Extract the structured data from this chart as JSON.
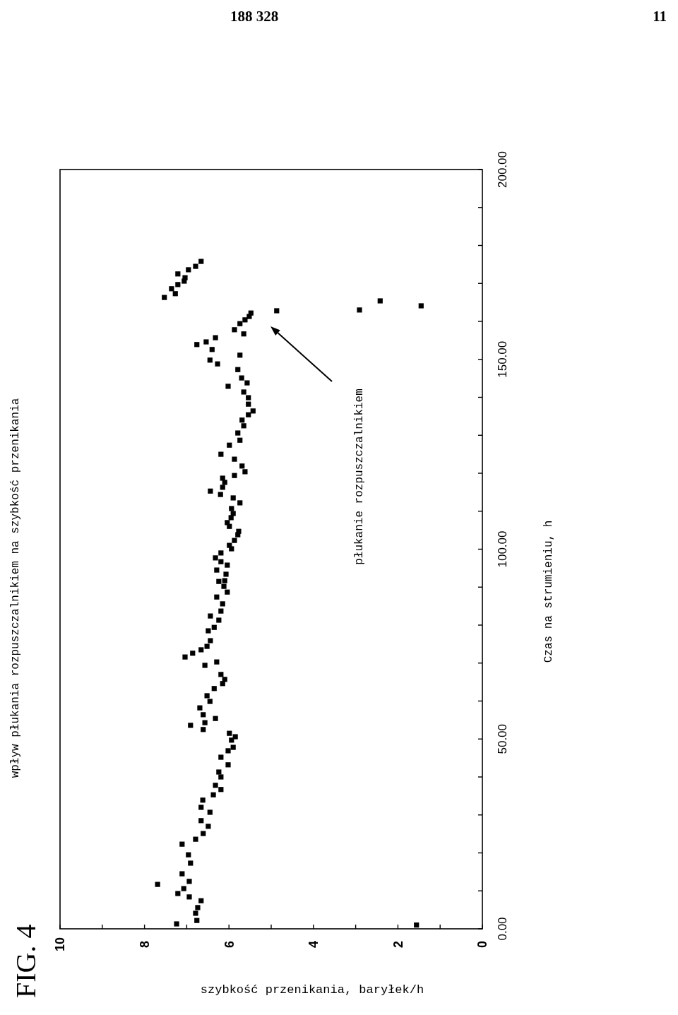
{
  "chart_data": {
    "type": "scatter",
    "title": "wpływ płukania rozpuszczalnikiem na szybkość przenikania",
    "xlabel": "szybkość przenikania, baryłek/h",
    "ylabel": "Czas na strumieniu, h",
    "annotations": [
      "188 328",
      "11",
      "FIG. 4",
      "płukanie rozpuszczalnikiem"
    ],
    "marker": "square",
    "xlim": [
      10,
      0
    ],
    "xticks": [
      10,
      {
        "value": 9,
        "label": null
      },
      8,
      {
        "value": 7,
        "label": null
      },
      6,
      {
        "value": 5,
        "label": null
      },
      4,
      {
        "value": 3,
        "label": null
      },
      2,
      {
        "value": 1,
        "label": null
      },
      0
    ],
    "ylim": [
      0,
      200
    ],
    "yticks": [
      {
        "value": 0,
        "label": "0.00"
      },
      {
        "value": 10,
        "label": null
      },
      {
        "value": 20,
        "label": null
      },
      {
        "value": 30,
        "label": null
      },
      {
        "value": 40,
        "label": null
      },
      {
        "value": 50,
        "label": "50.00"
      },
      {
        "value": 60,
        "label": null
      },
      {
        "value": 70,
        "label": null
      },
      {
        "value": 80,
        "label": null
      },
      {
        "value": 90,
        "label": null
      },
      {
        "value": 100,
        "label": "100.00"
      },
      {
        "value": 110,
        "label": null
      },
      {
        "value": 120,
        "label": null
      },
      {
        "value": 130,
        "label": null
      },
      {
        "value": 140,
        "label": null
      },
      {
        "value": 150,
        "label": "150.00"
      },
      {
        "value": 160,
        "label": null
      },
      {
        "value": 170,
        "label": null
      },
      {
        "value": 180,
        "label": null
      },
      {
        "value": 190,
        "label": null
      },
      {
        "value": 200,
        "label": "200.00"
      }
    ],
    "series": [
      {
        "color": "#000000",
        "values": [
          1.3,
          1,
          2.2,
          4.1,
          5.6,
          7.4,
          8.4,
          9.3,
          10.6,
          11.7,
          12.5,
          14.5,
          17.3,
          19.5,
          22.3,
          23.6,
          25.1,
          27,
          28.5,
          30.7,
          32,
          33.9,
          35.3,
          36.7,
          37.8,
          40,
          41.3,
          43.2,
          45.2,
          46.9,
          47.8,
          49.7,
          50.6,
          51.5,
          52.5,
          53.6,
          54.3,
          55.4,
          56.4,
          58.2,
          59.9,
          61.4,
          63.3,
          64.6,
          65.7,
          67,
          69.4,
          70.3,
          71.6,
          72.6,
          73.5,
          74.4,
          75.9,
          78.5,
          79.4,
          81.3,
          82.4,
          83.7,
          85.6,
          87.4,
          88.7,
          90.2,
          91.5,
          91.7,
          93.4,
          94.5,
          95.8,
          96.7,
          97.7,
          99,
          100.1,
          101,
          102.3,
          103.8,
          104.7,
          106,
          107,
          108.3,
          109.4,
          110.7,
          112.2,
          113.5,
          114.4,
          115.3,
          116.3,
          117.6,
          118.7,
          119.4,
          120.4,
          121.9,
          123.7,
          125,
          127.4,
          128.7,
          130.6,
          132.5,
          134,
          135.4,
          136.4,
          138.2,
          139.9,
          141.4,
          142.9,
          143.8,
          145.1,
          147.3,
          148.8,
          149.8,
          151.1,
          152.6,
          153.9,
          154.6,
          155.7,
          156.7,
          157.8,
          159.4,
          160.4,
          161.3,
          162.2,
          162.8,
          163,
          164.1,
          165.4,
          166.3,
          167.3,
          168.6,
          169.7,
          170.6,
          171.5,
          172.5,
          173.6,
          174.5,
          175.8
        ],
        "x": [
          7.24,
          1.56,
          6.76,
          6.79,
          6.74,
          6.66,
          6.94,
          7.21,
          7.07,
          7.69,
          6.94,
          7.11,
          6.91,
          6.96,
          7.11,
          6.79,
          6.61,
          6.49,
          6.66,
          6.45,
          6.66,
          6.62,
          6.37,
          6.19,
          6.32,
          6.19,
          6.24,
          6.02,
          6.19,
          6.02,
          5.9,
          5.94,
          5.85,
          5.99,
          6.61,
          6.91,
          6.57,
          6.32,
          6.61,
          6.69,
          6.45,
          6.52,
          6.35,
          6.15,
          6.1,
          6.19,
          6.57,
          6.29,
          7.04,
          6.86,
          6.66,
          6.52,
          6.44,
          6.49,
          6.35,
          6.24,
          6.44,
          6.19,
          6.15,
          6.29,
          6.04,
          6.12,
          6.24,
          6.1,
          6.07,
          6.29,
          6.04,
          6.19,
          6.32,
          6.19,
          5.94,
          5.99,
          5.87,
          5.79,
          5.77,
          5.99,
          6.04,
          5.95,
          5.9,
          5.94,
          5.74,
          5.9,
          6.2,
          6.44,
          6.15,
          6.1,
          6.15,
          5.87,
          5.62,
          5.69,
          5.87,
          6.19,
          5.99,
          5.74,
          5.79,
          5.65,
          5.69,
          5.54,
          5.43,
          5.54,
          5.54,
          5.65,
          6.02,
          5.57,
          5.7,
          5.79,
          6.27,
          6.45,
          5.74,
          6.4,
          6.76,
          6.54,
          6.32,
          5.65,
          5.87,
          5.74,
          5.62,
          5.52,
          5.48,
          4.87,
          2.91,
          1.45,
          2.42,
          7.53,
          7.27,
          7.36,
          7.21,
          7.06,
          7.04,
          7.21,
          6.96,
          6.79,
          6.66
        ]
      }
    ]
  }
}
